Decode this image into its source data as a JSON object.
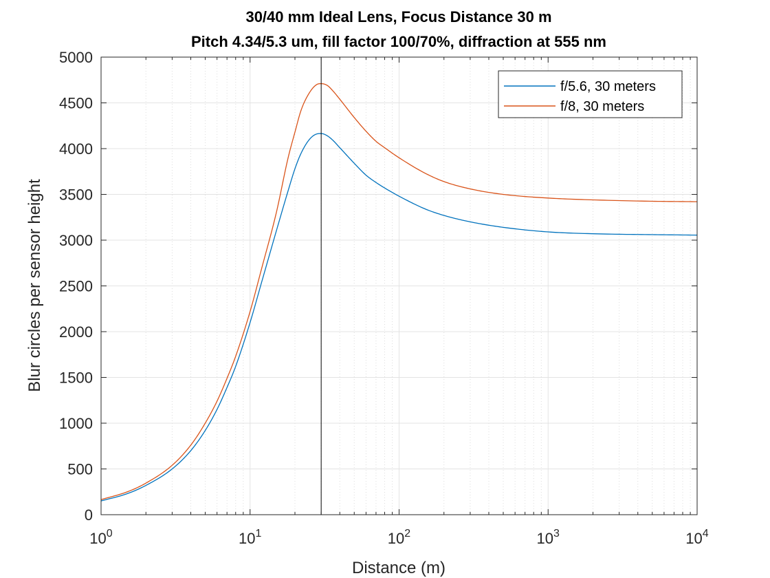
{
  "chart_data": {
    "type": "line",
    "title_lines": [
      "30/40 mm Ideal Lens, Focus Distance 30 m",
      "Pitch 4.34/5.3 um, fill factor 100/70%, diffraction at 555 nm"
    ],
    "xlabel": "Distance (m)",
    "ylabel": "Blur circles per sensor height",
    "x_scale": "log",
    "xlim": [
      1,
      10000
    ],
    "ylim": [
      0,
      5000
    ],
    "x_ticks": [
      {
        "value": 1,
        "base": "10",
        "exp": "0"
      },
      {
        "value": 10,
        "base": "10",
        "exp": "1"
      },
      {
        "value": 100,
        "base": "10",
        "exp": "2"
      },
      {
        "value": 1000,
        "base": "10",
        "exp": "3"
      },
      {
        "value": 10000,
        "base": "10",
        "exp": "4"
      }
    ],
    "y_ticks": [
      0,
      500,
      1000,
      1500,
      2000,
      2500,
      3000,
      3500,
      4000,
      4500,
      5000
    ],
    "y_tick_labels": [
      "0",
      "500",
      "1000",
      "1500",
      "2000",
      "2500",
      "3000",
      "3500",
      "4000",
      "4500",
      "5000"
    ],
    "grid": true,
    "minor_grid": true,
    "legend_position": "top-right",
    "vertical_line": {
      "x": 30,
      "color": "#000000"
    },
    "series": [
      {
        "name": "f/5.6, 30 meters",
        "color": "#0072BD",
        "x": [
          1,
          1.5,
          2,
          3,
          4,
          5,
          6,
          7,
          8,
          10,
          12,
          15,
          18,
          20,
          22,
          25,
          28,
          30,
          33,
          36,
          40,
          50,
          60,
          70,
          80,
          100,
          150,
          200,
          300,
          500,
          1000,
          2000,
          5000,
          10000
        ],
        "y": [
          150,
          230,
          320,
          500,
          700,
          920,
          1150,
          1390,
          1620,
          2100,
          2550,
          3100,
          3540,
          3780,
          3950,
          4100,
          4160,
          4165,
          4140,
          4090,
          4010,
          3840,
          3710,
          3630,
          3570,
          3480,
          3340,
          3270,
          3200,
          3140,
          3090,
          3070,
          3060,
          3055
        ]
      },
      {
        "name": "f/8, 30 meters",
        "color": "#D95319",
        "x": [
          1,
          1.5,
          2,
          3,
          4,
          5,
          6,
          7,
          8,
          10,
          12,
          15,
          18,
          20,
          22,
          25,
          28,
          30,
          33,
          36,
          40,
          50,
          60,
          70,
          80,
          100,
          150,
          200,
          300,
          500,
          1000,
          2000,
          5000,
          10000
        ],
        "y": [
          165,
          250,
          345,
          540,
          760,
          1000,
          1240,
          1490,
          1730,
          2220,
          2700,
          3300,
          3900,
          4180,
          4420,
          4610,
          4700,
          4710,
          4690,
          4630,
          4540,
          4340,
          4190,
          4080,
          4010,
          3900,
          3730,
          3640,
          3560,
          3500,
          3460,
          3440,
          3425,
          3420
        ]
      }
    ]
  }
}
